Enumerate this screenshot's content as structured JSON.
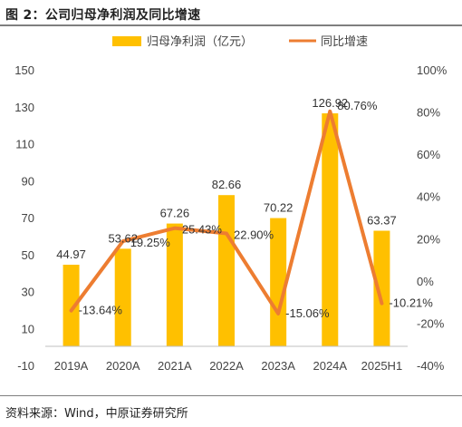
{
  "title": "图 2：公司归母净利润及同比增速",
  "source": "资料来源：Wind，中原证券研究所",
  "colors": {
    "bar": "#FFC000",
    "line": "#ED7D31"
  },
  "chart_data": {
    "type": "bar",
    "categories": [
      "2019A",
      "2020A",
      "2021A",
      "2022A",
      "2023A",
      "2024A",
      "2025H1"
    ],
    "series": [
      {
        "name": "归母净利润（亿元）",
        "type": "bar",
        "axis": "left",
        "values": [
          44.97,
          53.62,
          67.26,
          82.66,
          70.22,
          126.92,
          63.37
        ],
        "labels": [
          "44.97",
          "53.62",
          "67.26",
          "82.66",
          "70.22",
          "126.92",
          "63.37"
        ]
      },
      {
        "name": "同比增速",
        "type": "line",
        "axis": "right",
        "values": [
          -13.64,
          19.25,
          25.43,
          22.9,
          -15.06,
          80.76,
          -10.21
        ],
        "labels": [
          "-13.64%",
          "19.25%",
          "25.43%",
          "22.90%",
          "-15.06%",
          "80.76%",
          "-10.21%"
        ]
      }
    ],
    "y_left": {
      "range": [
        -10,
        150
      ],
      "ticks": [
        "150",
        "130",
        "110",
        "90",
        "70",
        "50",
        "30",
        "10",
        "-10"
      ]
    },
    "y_right": {
      "range": [
        -40,
        100
      ],
      "ticks": [
        "100%",
        "80%",
        "60%",
        "40%",
        "20%",
        "0%",
        "-20%",
        "-40%"
      ]
    },
    "grid": false,
    "legend": "top"
  }
}
